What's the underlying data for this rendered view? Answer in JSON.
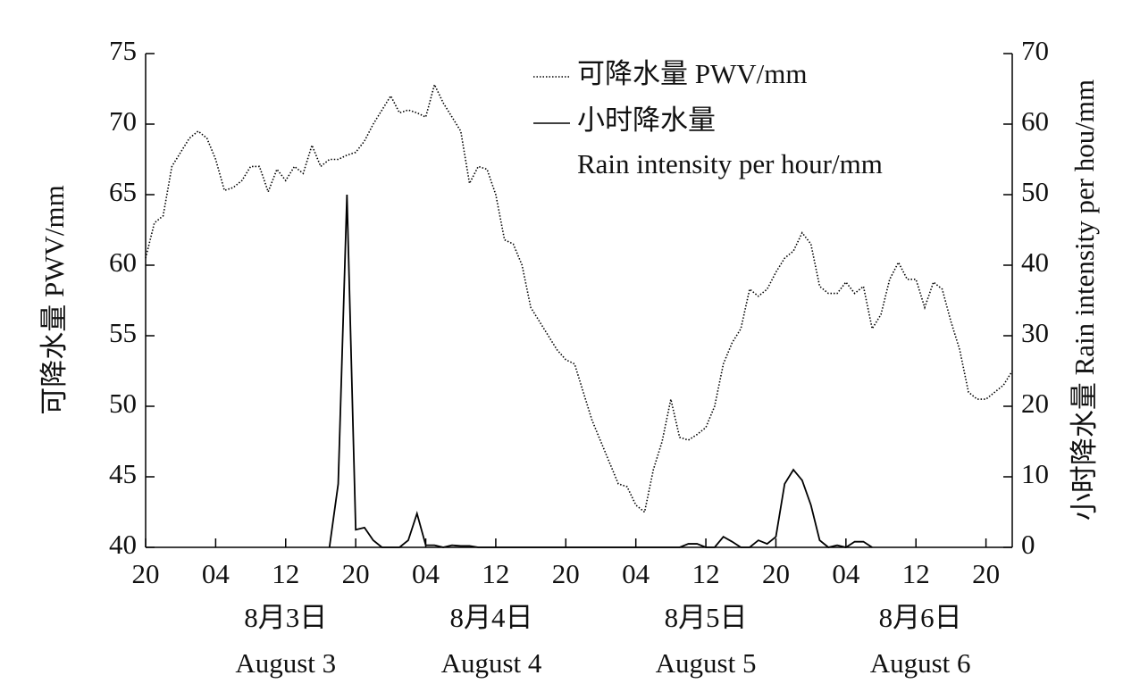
{
  "chart_data": {
    "type": "line",
    "ylabel": "可降水量 PWV/mm",
    "y2label": "小时降水量 Rain intensity per hou/mm",
    "x": [
      0,
      1,
      2,
      3,
      4,
      5,
      6,
      7,
      8,
      9,
      10,
      11,
      12,
      13,
      14,
      15,
      16,
      17,
      18,
      19,
      20,
      21,
      22,
      23,
      24,
      25,
      26,
      27,
      28,
      29,
      30,
      31,
      32,
      33,
      34,
      35,
      36,
      37,
      38,
      39,
      40,
      41,
      42,
      43,
      44,
      45,
      46,
      47,
      48,
      49,
      50,
      51,
      52,
      53,
      54,
      55,
      56,
      57,
      58,
      59,
      60,
      61,
      62,
      63,
      64,
      65,
      66,
      67,
      68,
      69,
      70,
      71,
      72,
      73,
      74,
      75,
      76,
      77,
      78,
      79,
      80,
      81,
      82,
      83,
      84,
      85,
      86,
      87,
      88,
      89,
      90,
      91,
      92,
      93,
      94,
      95,
      96,
      97,
      98,
      99
    ],
    "series": [
      {
        "name": "可降水量 PWV/mm",
        "color": "#000000",
        "dash": "dotted",
        "values": [
          60.5,
          63,
          63.5,
          67,
          68,
          69,
          69.5,
          69,
          67.5,
          65.3,
          65.5,
          66,
          67,
          67,
          65.2,
          66.8,
          66,
          67,
          66.5,
          68.5,
          67,
          67.5,
          67.5,
          67.8,
          68,
          68.8,
          70,
          71,
          72,
          70.8,
          71,
          70.8,
          70.5,
          72.8,
          71.5,
          70.5,
          69.5,
          65.8,
          67,
          66.8,
          65,
          61.8,
          61.5,
          60,
          57,
          56,
          55,
          54,
          53.3,
          53,
          51,
          49,
          47.5,
          46,
          44.5,
          44.3,
          43,
          42.5,
          45.5,
          47.5,
          50.5,
          47.8,
          47.6,
          48,
          48.5,
          50,
          53,
          54.5,
          55.5,
          58.3,
          57.8,
          58.3,
          59.5,
          60.5,
          61,
          62.3,
          61.5,
          58.5,
          58,
          58,
          58.8,
          58,
          58.5,
          55.5,
          56.5,
          59,
          60.2,
          59,
          59,
          57,
          58.8,
          58.3,
          56,
          54,
          51,
          50.5,
          50.5,
          51,
          51.5,
          52.5
        ]
      },
      {
        "name": "小时降水量",
        "name_en": "Rain intensity per hour/mm",
        "color": "#000000",
        "dash": "solid",
        "axis": "y2",
        "values": [
          null,
          null,
          null,
          null,
          null,
          null,
          null,
          null,
          null,
          null,
          null,
          null,
          null,
          null,
          null,
          null,
          null,
          null,
          null,
          null,
          null,
          0,
          9,
          50,
          2.5,
          2.8,
          1,
          0,
          0,
          0,
          1,
          4.8,
          0.3,
          0.3,
          0,
          0.3,
          0.2,
          0.2,
          0,
          0,
          0,
          0,
          0,
          0,
          0,
          0,
          0,
          0,
          0,
          0,
          0,
          0,
          0,
          0,
          0,
          0,
          0,
          0,
          0,
          0,
          0,
          0,
          0.5,
          0.5,
          0,
          0,
          1.5,
          0.8,
          0,
          0,
          1,
          0.5,
          1.5,
          9,
          11,
          9.5,
          6,
          1,
          0,
          0.3,
          0,
          0.8,
          0.8,
          0,
          null,
          null,
          null,
          null,
          null,
          null,
          null,
          null,
          null,
          null,
          null,
          null,
          null,
          null,
          null,
          null
        ]
      }
    ],
    "xlim": [
      0,
      99
    ],
    "xticks": [
      {
        "value": 0,
        "label": "20"
      },
      {
        "value": 8,
        "label": "04"
      },
      {
        "value": 16,
        "label": "12"
      },
      {
        "value": 24,
        "label": "20"
      },
      {
        "value": 32,
        "label": "04"
      },
      {
        "value": 40,
        "label": "12"
      },
      {
        "value": 48,
        "label": "20"
      },
      {
        "value": 56,
        "label": "04"
      },
      {
        "value": 64,
        "label": "12"
      },
      {
        "value": 72,
        "label": "20"
      },
      {
        "value": 80,
        "label": "04"
      },
      {
        "value": 88,
        "label": "12"
      },
      {
        "value": 96,
        "label": "20"
      }
    ],
    "day_labels": [
      {
        "value": 16,
        "label": "8月3日",
        "label_en": "August 3"
      },
      {
        "value": 39.5,
        "label": "8月4日",
        "label_en": "August 4"
      },
      {
        "value": 64,
        "label": "8月5日",
        "label_en": "August 5"
      },
      {
        "value": 88.5,
        "label": "8月6日",
        "label_en": "August 6"
      }
    ],
    "ylim": [
      40,
      75
    ],
    "yticks": [
      40,
      45,
      50,
      55,
      60,
      65,
      70,
      75
    ],
    "y2lim": [
      0,
      70
    ],
    "y2ticks": [
      0,
      10,
      20,
      30,
      40,
      50,
      60,
      70
    ]
  }
}
